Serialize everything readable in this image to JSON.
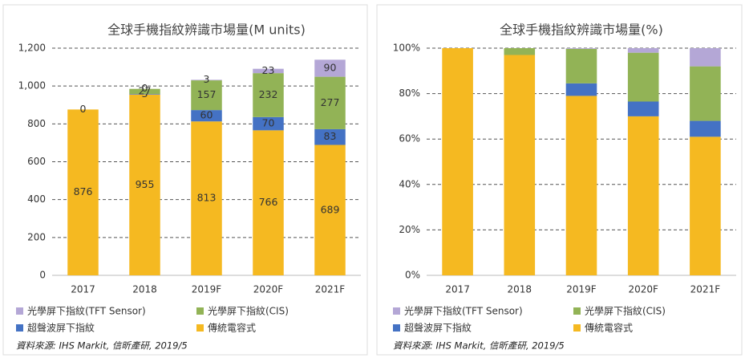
{
  "chart_data": [
    {
      "type": "bar",
      "stacked": true,
      "title": "全球手機指紋辨識市場量(M units)",
      "categories": [
        "2017",
        "2018",
        "2019F",
        "2020F",
        "2021F"
      ],
      "series": [
        {
          "name": "傳統電容式",
          "color": "#f5b921",
          "values": [
            876,
            955,
            813,
            766,
            689
          ]
        },
        {
          "name": "超聲波屏下指紋",
          "color": "#4472c4",
          "values": [
            0,
            3,
            60,
            70,
            83
          ]
        },
        {
          "name": "光學屏下指紋(CIS)",
          "color": "#92b356",
          "values": [
            null,
            27,
            157,
            232,
            277
          ]
        },
        {
          "name": "光學屏下指紋(TFT Sensor)",
          "color": "#b4a7d6",
          "values": [
            null,
            0,
            3,
            23,
            90
          ]
        }
      ],
      "data_labels": true,
      "legend_order": [
        3,
        2,
        1,
        0
      ],
      "ylim": [
        0,
        1200
      ],
      "yticks": [
        0,
        200,
        400,
        600,
        800,
        {
          "value": 1000,
          "label": "1,000"
        },
        {
          "value": 1200,
          "label": "1,200"
        }
      ],
      "grid": true,
      "source": "資料來源: IHS Markit, 信昕產研, 2019/5"
    },
    {
      "type": "bar",
      "stacked": true,
      "title": "全球手機指紋辨識市場量(%)",
      "categories": [
        "2017",
        "2018",
        "2019F",
        "2020F",
        "2021F"
      ],
      "series": [
        {
          "name": "傳統電容式",
          "color": "#f5b921",
          "values": [
            100,
            97,
            79,
            70,
            61
          ]
        },
        {
          "name": "超聲波屏下指紋",
          "color": "#4472c4",
          "values": [
            0,
            0,
            5.5,
            6.5,
            7
          ]
        },
        {
          "name": "光學屏下指紋(CIS)",
          "color": "#92b356",
          "values": [
            0,
            3,
            15.2,
            21.5,
            24
          ]
        },
        {
          "name": "光學屏下指紋(TFT Sensor)",
          "color": "#b4a7d6",
          "values": [
            0,
            0,
            0.3,
            2,
            8
          ]
        }
      ],
      "data_labels": false,
      "legend_order": [
        3,
        2,
        1,
        0
      ],
      "ylim": [
        0,
        100
      ],
      "yticks": [
        {
          "value": 0,
          "label": "0%"
        },
        {
          "value": 20,
          "label": "20%"
        },
        {
          "value": 40,
          "label": "40%"
        },
        {
          "value": 60,
          "label": "60%"
        },
        {
          "value": 80,
          "label": "80%"
        },
        {
          "value": 100,
          "label": "100%"
        }
      ],
      "grid": true,
      "source": "資料來源: IHS Markit, 信昕產研, 2019/5"
    }
  ]
}
